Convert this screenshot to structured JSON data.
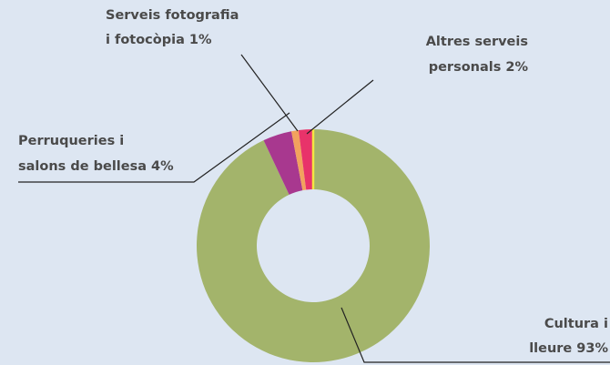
{
  "chart_data": {
    "type": "donut",
    "categories": [
      [
        "Cultura i",
        "lleure"
      ],
      [
        "Perruqueries i",
        "salons de bellesa"
      ],
      [
        "Serveis fotografia",
        "i fotocòpia"
      ],
      [
        "Altres serveis",
        "personals"
      ]
    ],
    "values": [
      93,
      4,
      1,
      2
    ],
    "value_labels": [
      "93%",
      "4%",
      "1%",
      "2%"
    ],
    "colors": [
      "#a3b46b",
      "#a8388f",
      "#f2a25e",
      "#e8336a"
    ]
  }
}
